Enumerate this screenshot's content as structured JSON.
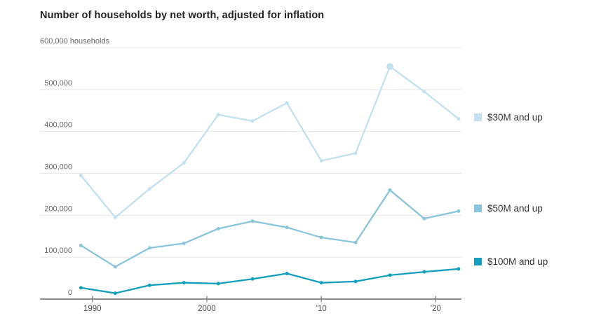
{
  "title": "Number of households by net worth, adjusted for inflation",
  "chart_data": {
    "type": "line",
    "x": [
      1989,
      1992,
      1995,
      1998,
      2001,
      2004,
      2007,
      2010,
      2013,
      2016,
      2019,
      2022
    ],
    "series": [
      {
        "name": "$30M and up",
        "slug": "30m-and-up",
        "color": "#c2e0ee",
        "values": [
          295000,
          195000,
          263000,
          325000,
          440000,
          425000,
          468000,
          330000,
          348000,
          555000,
          495000,
          430000
        ],
        "highlight_x": 2016
      },
      {
        "name": "$50M and up",
        "slug": "50m-and-up",
        "color": "#8ac5da",
        "values": [
          128000,
          77000,
          122000,
          133000,
          168000,
          186000,
          171000,
          147000,
          135000,
          260000,
          192000,
          210000
        ]
      },
      {
        "name": "$100M and up",
        "slug": "100m-and-up",
        "color": "#149fbc",
        "values": [
          27000,
          14000,
          33000,
          39000,
          37000,
          48000,
          61000,
          39000,
          42000,
          57000,
          65000,
          72000
        ]
      }
    ],
    "xlabel": "",
    "ylabel": "households",
    "ylim": [
      0,
      600000
    ],
    "xlim_years": [
      1985.42,
      2022.25
    ],
    "grid": "horizontal",
    "legend_position": "right",
    "y_ticks": [
      {
        "value": 0,
        "label": "0"
      },
      {
        "value": 100000,
        "label": "100,000"
      },
      {
        "value": 200000,
        "label": "200,000"
      },
      {
        "value": 300000,
        "label": "300,000"
      },
      {
        "value": 400000,
        "label": "400,000"
      },
      {
        "value": 500000,
        "label": "500,000"
      },
      {
        "value": 600000,
        "label": "600,000 households"
      }
    ],
    "x_ticks": [
      {
        "value": 1990,
        "label": "1990"
      },
      {
        "value": 2000,
        "label": "2000"
      },
      {
        "value": 2010,
        "label": "’10"
      },
      {
        "value": 2020,
        "label": "’20"
      }
    ]
  },
  "legend": {
    "items": [
      {
        "label": "$30M and up"
      },
      {
        "label": "$50M and up"
      },
      {
        "label": "$100M and up"
      }
    ]
  },
  "colors": {
    "background": "#ffffff",
    "grid": "#e8e8e8",
    "axis": "#7b7b7b",
    "title_text": "#222222",
    "y_tick_text": "#666666",
    "x_tick_text": "#4d4d4d",
    "legend_text": "#333333"
  }
}
